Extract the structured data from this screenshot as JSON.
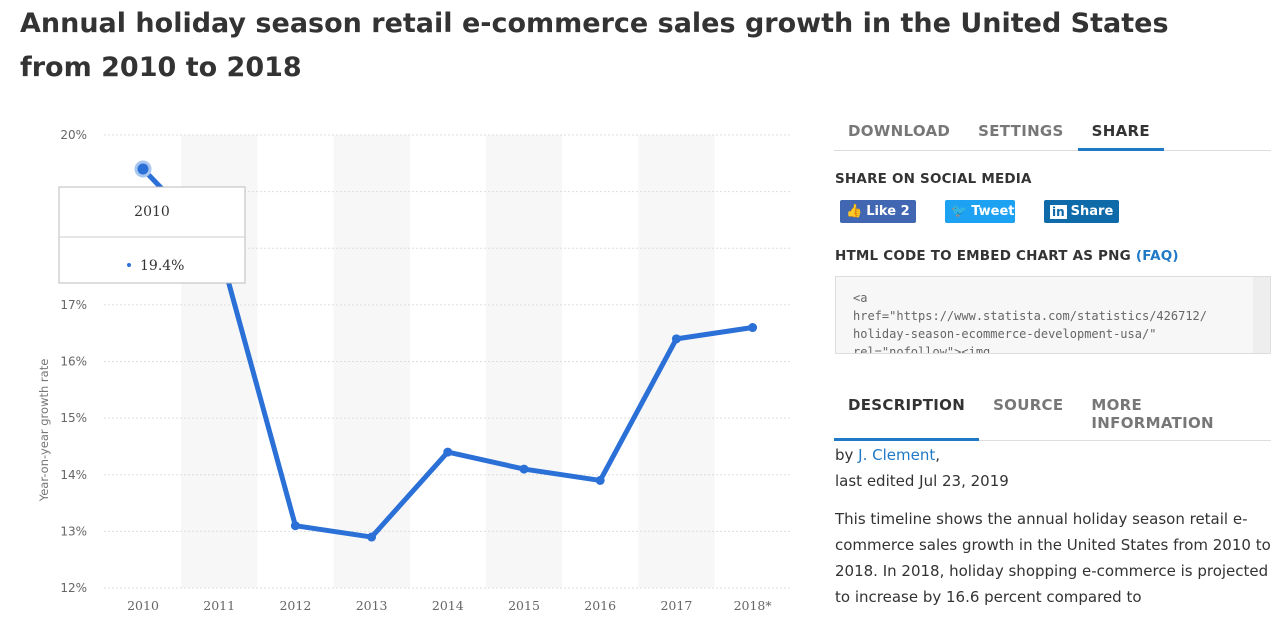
{
  "title": "Annual holiday season retail e-commerce sales growth in the United States from 2010 to 2018",
  "chart_data": {
    "type": "line",
    "categories": [
      "2010",
      "2011",
      "2012",
      "2013",
      "2014",
      "2015",
      "2016",
      "2017",
      "2018*"
    ],
    "series": [
      {
        "values": [
          19.4,
          18.0,
          13.1,
          12.9,
          14.4,
          14.1,
          13.9,
          16.4,
          16.6
        ]
      }
    ],
    "ylabel": "Year-on-year growth rate",
    "ylim": [
      12,
      20
    ],
    "yticks": [
      "12%",
      "13%",
      "14%",
      "15%",
      "16%",
      "17%",
      "18%",
      "19%",
      "20%"
    ],
    "grid": true,
    "color": "#2b70d6",
    "tooltip": {
      "category": "2010",
      "value": "19.4%"
    }
  },
  "tabs": [
    {
      "label": "DOWNLOAD"
    },
    {
      "label": "SETTINGS"
    },
    {
      "label": "SHARE"
    }
  ],
  "share": {
    "heading": "SHARE ON SOCIAL MEDIA",
    "facebook": "Like 2",
    "twitter": "Tweet",
    "linkedin": "Share",
    "embed_heading": "HTML CODE TO EMBED CHART AS PNG",
    "faq": "(FAQ)",
    "code": "<a\nhref=\"https://www.statista.com/statistics/426712/\nholiday-season-ecommerce-development-usa/\"\nrel=\"nofollow\"><img"
  },
  "info_tabs": [
    {
      "label": "DESCRIPTION"
    },
    {
      "label": "SOURCE"
    },
    {
      "label": "MORE INFORMATION"
    }
  ],
  "description": {
    "by": "by ",
    "author": "J. Clement",
    "edited": "last edited Jul 23, 2019",
    "text": "This timeline shows the annual holiday season retail e-commerce sales growth in the United States from 2010 to 2018. In 2018, holiday shopping e-commerce is projected to increase by 16.6 percent compared to"
  }
}
